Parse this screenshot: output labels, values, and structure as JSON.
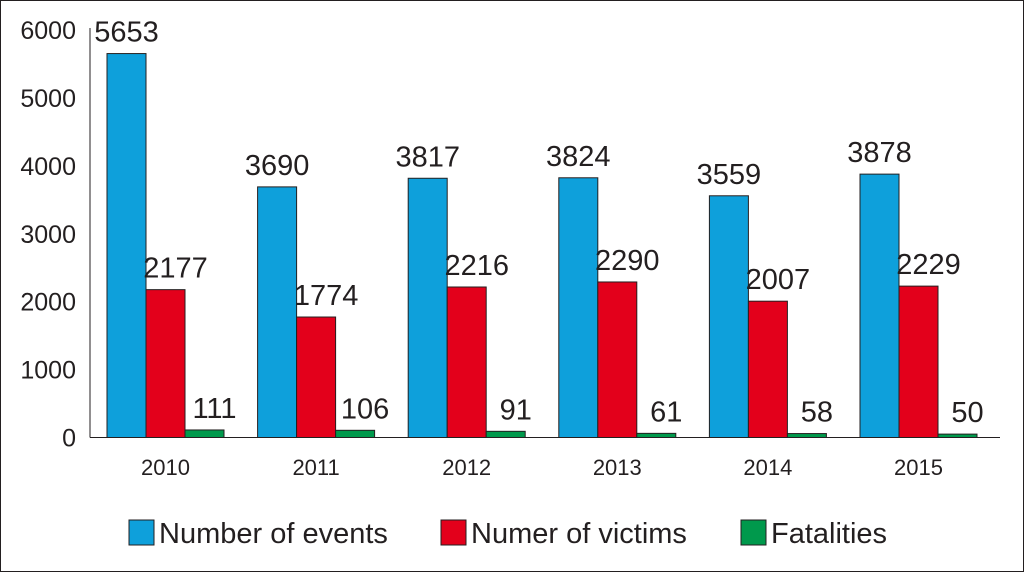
{
  "chart_data": {
    "type": "bar",
    "categories": [
      "2010",
      "2011",
      "2012",
      "2013",
      "2014",
      "2015"
    ],
    "series": [
      {
        "name": "Number of events",
        "color": "#0ea0db",
        "values": [
          5653,
          3690,
          3817,
          3824,
          3559,
          3878
        ]
      },
      {
        "name": "Numer of victims",
        "color": "#e3001b",
        "values": [
          2177,
          1774,
          2216,
          2290,
          2007,
          2229
        ]
      },
      {
        "name": "Fatalities",
        "color": "#00994c",
        "values": [
          111,
          106,
          91,
          61,
          58,
          50
        ]
      }
    ],
    "yticks": [
      "0",
      "1000",
      "2000",
      "3000",
      "4000",
      "5000",
      "6000"
    ],
    "ylim": [
      0,
      6000
    ],
    "grid": false,
    "legend_position": "bottom"
  }
}
